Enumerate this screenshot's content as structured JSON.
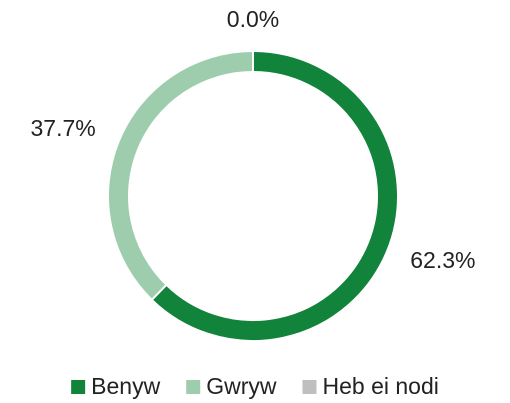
{
  "chart_data": {
    "type": "donut",
    "categories": [
      "Benyw",
      "Gwryw",
      "Heb ei nodi"
    ],
    "values": [
      62.3,
      37.7,
      0.0
    ],
    "value_labels": [
      "62.3%",
      "37.7%",
      "0.0%"
    ],
    "colors": [
      "#12833a",
      "#9dcdac",
      "#bfbfbf"
    ],
    "legend": "bottom"
  }
}
